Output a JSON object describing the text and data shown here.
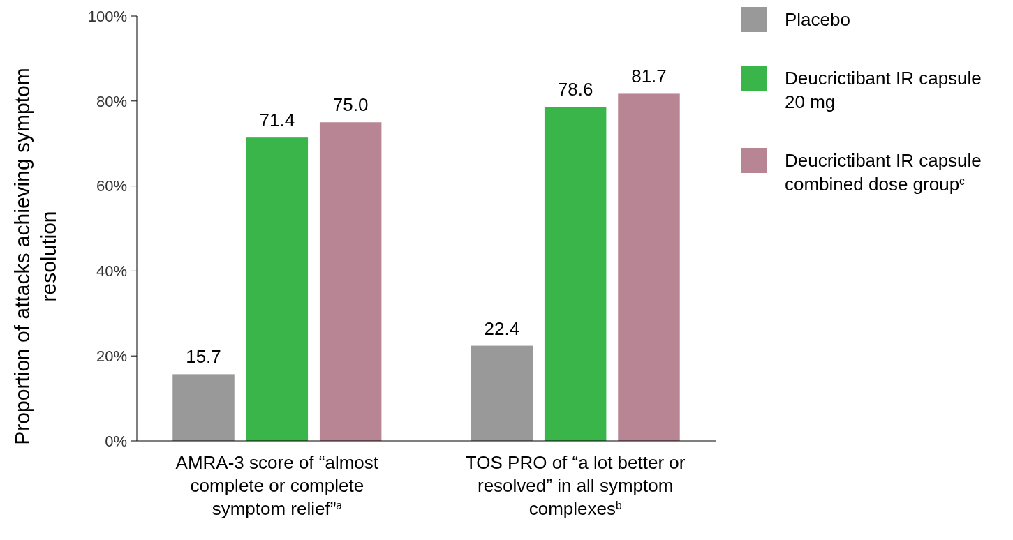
{
  "chart_data": {
    "type": "bar",
    "ylabel": "Proportion of attacks achieving symptom resolution",
    "categories": [
      "AMRA-3 score of “almost complete or complete symptom relief”$^{a}$",
      "TOS PRO of “a lot better or resolved” in all symptom complexes$^{b}$"
    ],
    "series": [
      {
        "name": "Placebo",
        "color": "#999999",
        "values": [
          15.7,
          22.4
        ],
        "value_labels": [
          "15.7",
          "22.4"
        ]
      },
      {
        "name": "Deucrictibant IR capsule 20 mg",
        "color": "#39b54a",
        "values": [
          71.4,
          78.6
        ],
        "value_labels": [
          "71.4",
          "78.6"
        ]
      },
      {
        "name": "Deucrictibant IR capsule combined dose group$^{c}$",
        "color": "#b88594",
        "values": [
          75.0,
          81.7
        ],
        "value_labels": [
          "75.0",
          "81.7"
        ]
      }
    ],
    "ylim": [
      0,
      100
    ],
    "yticks": [
      {
        "value": 0,
        "label": "0%"
      },
      {
        "value": 20,
        "label": "20%"
      },
      {
        "value": 40,
        "label": "40%"
      },
      {
        "value": 60,
        "label": "60%"
      },
      {
        "value": 80,
        "label": "80%"
      },
      {
        "value": 100,
        "label": "100%"
      }
    ],
    "legend": "right",
    "grid": false
  }
}
